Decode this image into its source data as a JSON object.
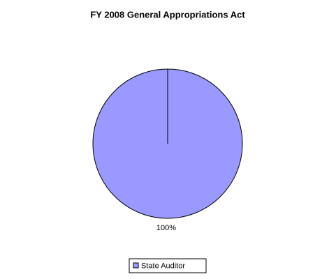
{
  "chart_data": {
    "type": "pie",
    "title": "FY 2008 General Appropriations Act",
    "categories": [
      "State Auditor"
    ],
    "values": [
      100
    ],
    "value_labels": [
      "100%"
    ],
    "colors": [
      "#9999ff"
    ],
    "legend": "bottom"
  }
}
